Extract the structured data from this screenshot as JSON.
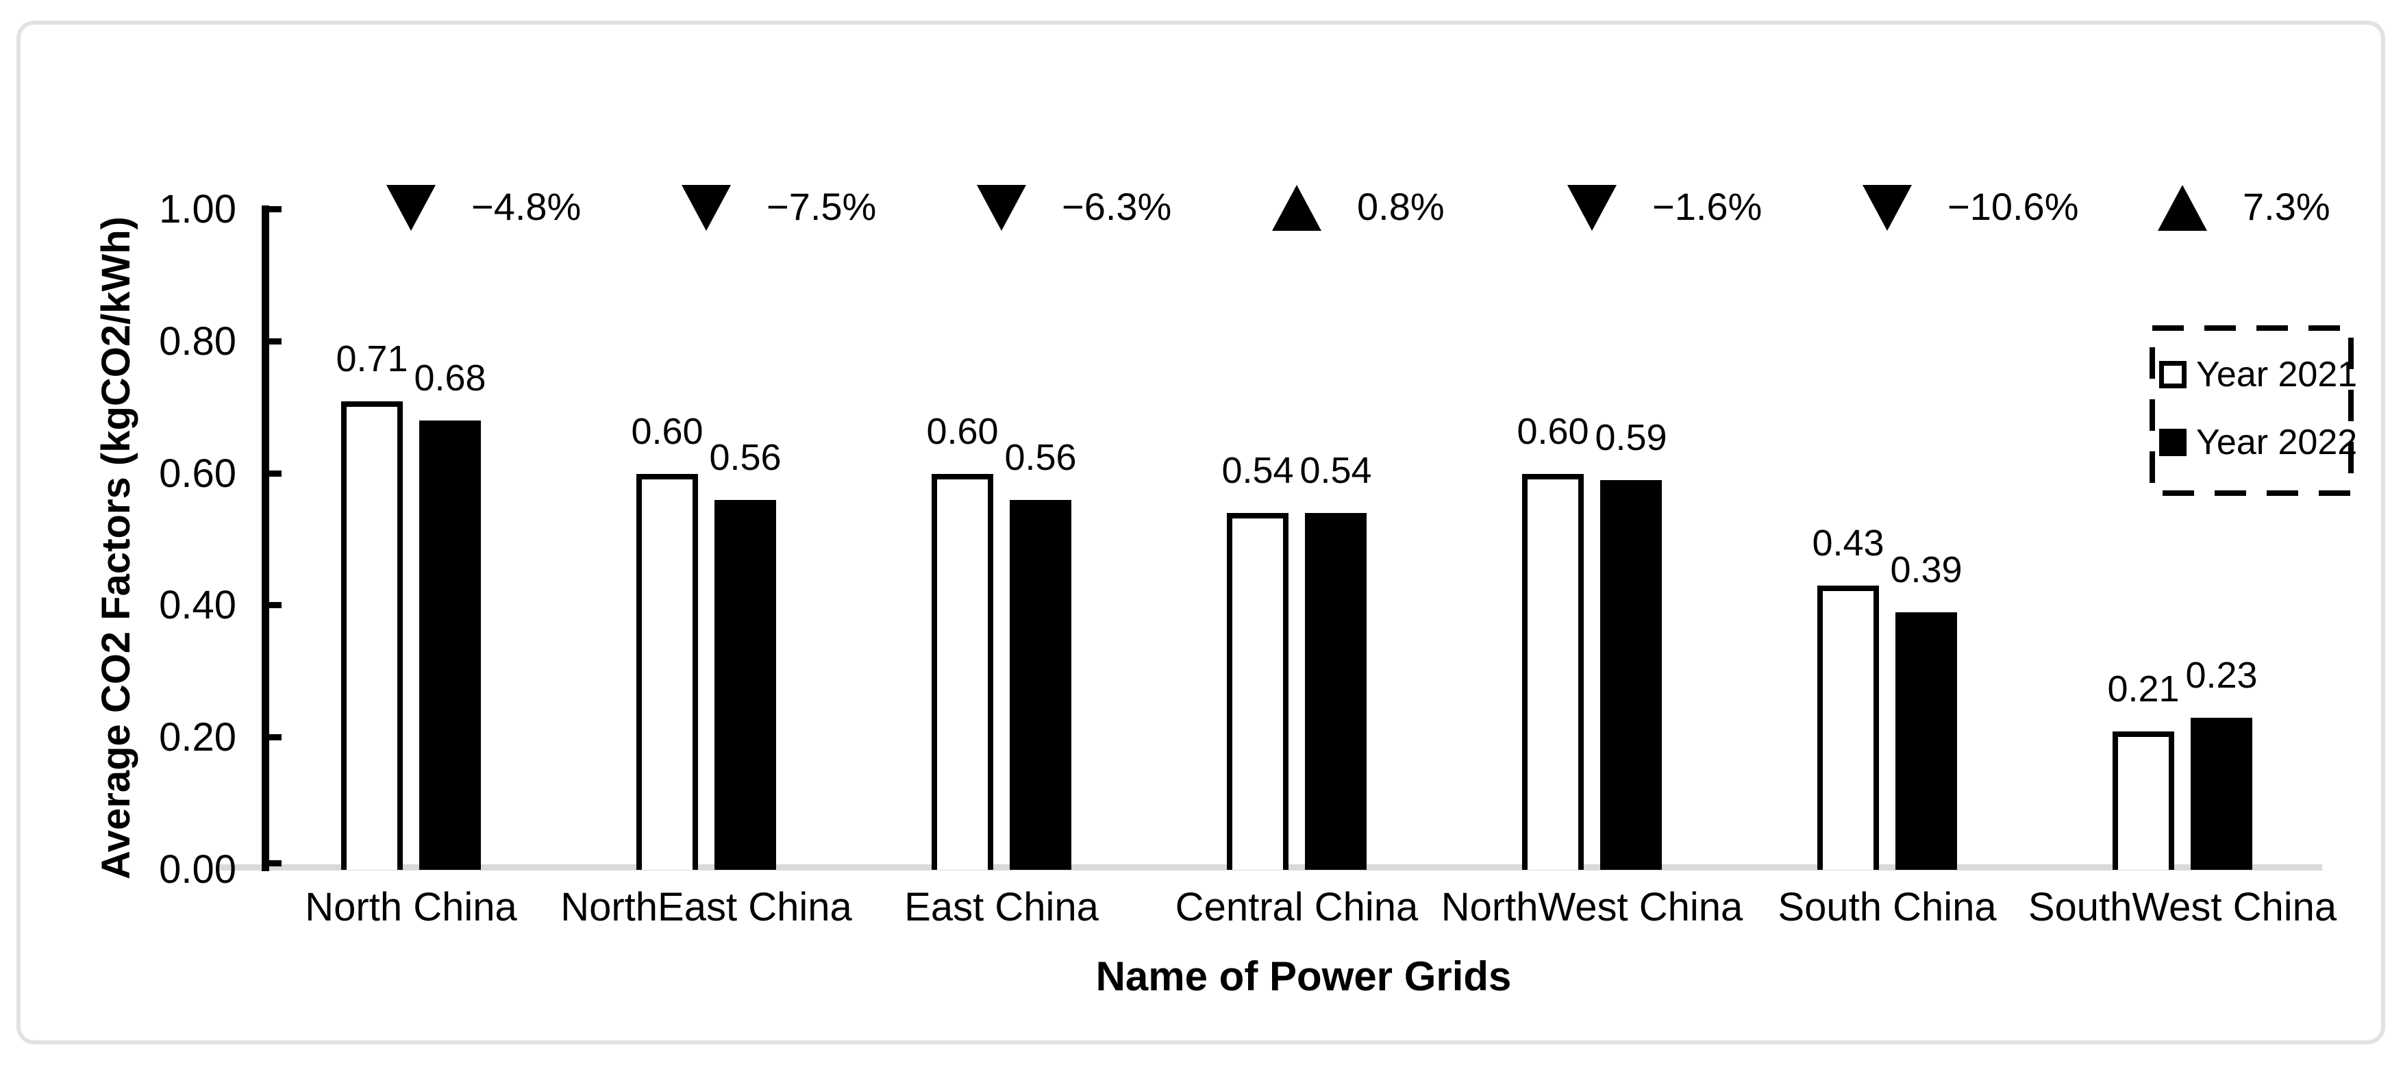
{
  "chart_data": {
    "type": "bar",
    "title": "",
    "xlabel": "Name of Power Grids",
    "ylabel": "Average CO2 Factors (kgCO2/kWh)",
    "ylim": [
      0.0,
      1.0
    ],
    "ytick_labels": [
      "0.00",
      "0.20",
      "0.40",
      "0.60",
      "0.80",
      "1.00"
    ],
    "grid": false,
    "legend_position": "top-right",
    "legend_border": "dashed",
    "categories": [
      "North China",
      "NorthEast China",
      "East China",
      "Central China",
      "NorthWest China",
      "South China",
      "SouthWest China"
    ],
    "series": [
      {
        "name": "Year 2021",
        "fill": "#ffffff",
        "outline": "#000000",
        "values": [
          0.71,
          0.6,
          0.6,
          0.54,
          0.6,
          0.43,
          0.21
        ]
      },
      {
        "name": "Year 2022",
        "fill": "#000000",
        "outline": "#000000",
        "values": [
          0.68,
          0.56,
          0.56,
          0.54,
          0.59,
          0.39,
          0.23
        ]
      }
    ],
    "value_labels": [
      [
        "0.71",
        "0.60",
        "0.60",
        "0.54",
        "0.60",
        "0.43",
        "0.21"
      ],
      [
        "0.68",
        "0.56",
        "0.56",
        "0.54",
        "0.59",
        "0.39",
        "0.23"
      ]
    ],
    "change_annotations": [
      {
        "category": "North China",
        "direction": "down",
        "label": "−4.8%"
      },
      {
        "category": "NorthEast China",
        "direction": "down",
        "label": "−7.5%"
      },
      {
        "category": "East China",
        "direction": "down",
        "label": "−6.3%"
      },
      {
        "category": "Central China",
        "direction": "up",
        "label": "0.8%"
      },
      {
        "category": "NorthWest China",
        "direction": "down",
        "label": "−1.6%"
      },
      {
        "category": "South China",
        "direction": "down",
        "label": "−10.6%"
      },
      {
        "category": "SouthWest China",
        "direction": "up",
        "label": "7.3%"
      }
    ]
  },
  "colors": {
    "bar_2021_fill": "#ffffff",
    "bar_2022_fill": "#000000",
    "bar_outline": "#000000",
    "baseline": "#d9d9d9",
    "frame_border": "#e2e2e2",
    "text": "#000000",
    "background": "#ffffff"
  }
}
